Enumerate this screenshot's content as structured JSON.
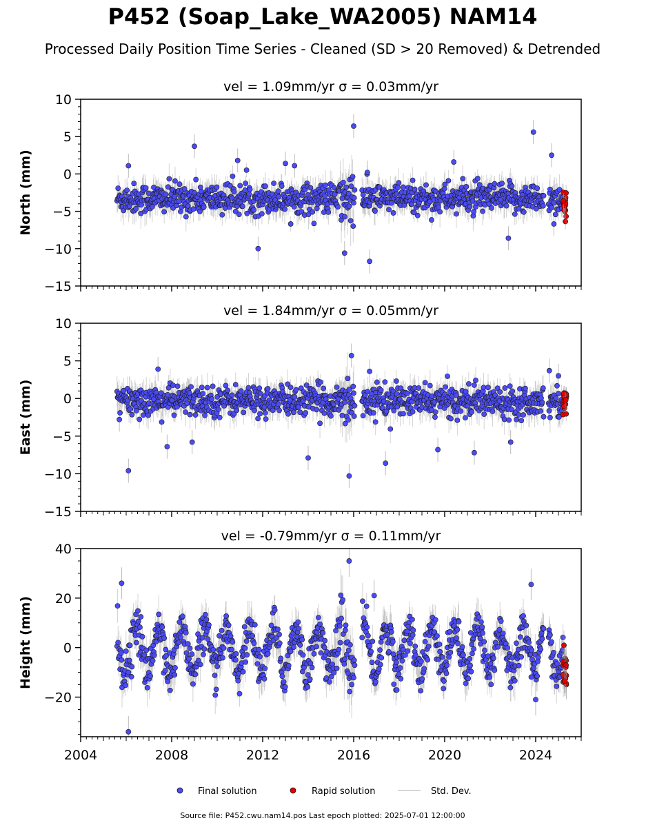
{
  "title": "P452 (Soap_Lake_WA2005) NAM14",
  "subtitle": "Processed Daily Position Time Series - Cleaned (SD > 20 Removed) & Detrended",
  "footer": "Source file: P452.cwu.nam14.pos  Last epoch plotted: 2025-07-01 12:00:00",
  "legend": {
    "final": "Final solution",
    "rapid": "Rapid solution",
    "std": "Std. Dev."
  },
  "colors": {
    "final": "#4b4bf5",
    "rapid": "#e50000",
    "std": "#c8c8c8",
    "edge": "#1a1a1a"
  },
  "chart_data": [
    {
      "type": "scatter",
      "title": "vel = 1.09mm/yr   σ = 0.03mm/yr",
      "ylabel": "North (mm)",
      "xlim": [
        2004,
        2026
      ],
      "ylim": [
        -15,
        10
      ],
      "yticks": [
        10,
        5,
        0,
        -5,
        -10,
        -15
      ],
      "ytick_labels": [
        "10",
        "5",
        "0",
        "−5",
        "−10",
        "−15"
      ],
      "grid": false,
      "series": [
        {
          "name": "Final solution",
          "x_range": [
            2005.6,
            2025.2
          ],
          "mean": -3.3,
          "spread": 1.0,
          "outliers": [
            [
              2006.1,
              1.1
            ],
            [
              2009.0,
              3.7
            ],
            [
              2010.9,
              1.8
            ],
            [
              2011.8,
              -10.0
            ],
            [
              2013.0,
              1.4
            ],
            [
              2013.4,
              1.1
            ],
            [
              2015.6,
              -10.6
            ],
            [
              2016.0,
              6.4
            ],
            [
              2016.7,
              -11.7
            ],
            [
              2016.6,
              0.2
            ],
            [
              2020.4,
              1.6
            ],
            [
              2022.8,
              -8.6
            ],
            [
              2023.9,
              5.6
            ],
            [
              2024.7,
              2.5
            ],
            [
              2024.8,
              -6.7
            ]
          ]
        },
        {
          "name": "Rapid solution",
          "x_range": [
            2025.2,
            2025.35
          ],
          "mean": -3.8,
          "spread": 0.9
        }
      ]
    },
    {
      "type": "scatter",
      "title": "vel = 1.84mm/yr   σ = 0.05mm/yr",
      "ylabel": "East (mm)",
      "xlim": [
        2004,
        2026
      ],
      "ylim": [
        -15,
        10
      ],
      "yticks": [
        10,
        5,
        0,
        -5,
        -10,
        -15
      ],
      "ytick_labels": [
        "10",
        "5",
        "0",
        "−5",
        "−10",
        "−15"
      ],
      "grid": false,
      "series": [
        {
          "name": "Final solution",
          "x_range": [
            2005.6,
            2025.2
          ],
          "mean": -0.3,
          "spread": 1.0,
          "outliers": [
            [
              2006.1,
              -9.6
            ],
            [
              2007.4,
              3.9
            ],
            [
              2005.7,
              -2.8
            ],
            [
              2007.8,
              -6.4
            ],
            [
              2008.9,
              -5.8
            ],
            [
              2014.0,
              -7.9
            ],
            [
              2015.8,
              -10.3
            ],
            [
              2015.9,
              5.7
            ],
            [
              2016.7,
              3.6
            ],
            [
              2017.4,
              -8.6
            ],
            [
              2019.7,
              -6.8
            ],
            [
              2021.3,
              -7.2
            ],
            [
              2022.9,
              -5.8
            ],
            [
              2024.6,
              3.7
            ],
            [
              2025.0,
              3.0
            ]
          ]
        },
        {
          "name": "Rapid solution",
          "x_range": [
            2025.2,
            2025.35
          ],
          "mean": -0.2,
          "spread": 0.8
        }
      ]
    },
    {
      "type": "scatter",
      "title": "vel = -0.79mm/yr   σ = 0.11mm/yr",
      "ylabel": "Height (mm)",
      "xlim": [
        2004,
        2026
      ],
      "ylim": [
        -36,
        40
      ],
      "yticks": [
        40,
        20,
        0,
        -20
      ],
      "ytick_labels": [
        "40",
        "20",
        "0",
        "−20"
      ],
      "xticks": [
        2004,
        2008,
        2012,
        2016,
        2020,
        2024
      ],
      "xtick_labels": [
        "2004",
        "2008",
        "2012",
        "2016",
        "2020",
        "2024"
      ],
      "grid": false,
      "series": [
        {
          "name": "Final solution",
          "x_range": [
            2005.6,
            2025.2
          ],
          "mean": -1.0,
          "amplitude": 9.0,
          "spread": 4.0,
          "outliers": [
            [
              2005.8,
              26.0
            ],
            [
              2006.1,
              -34.0
            ],
            [
              2015.8,
              35.0
            ],
            [
              2016.9,
              21.0
            ],
            [
              2023.8,
              25.5
            ],
            [
              2024.0,
              -21.0
            ]
          ]
        },
        {
          "name": "Rapid solution",
          "x_range": [
            2025.2,
            2025.35
          ],
          "mean": -7.0,
          "spread": 5.0
        }
      ]
    }
  ]
}
